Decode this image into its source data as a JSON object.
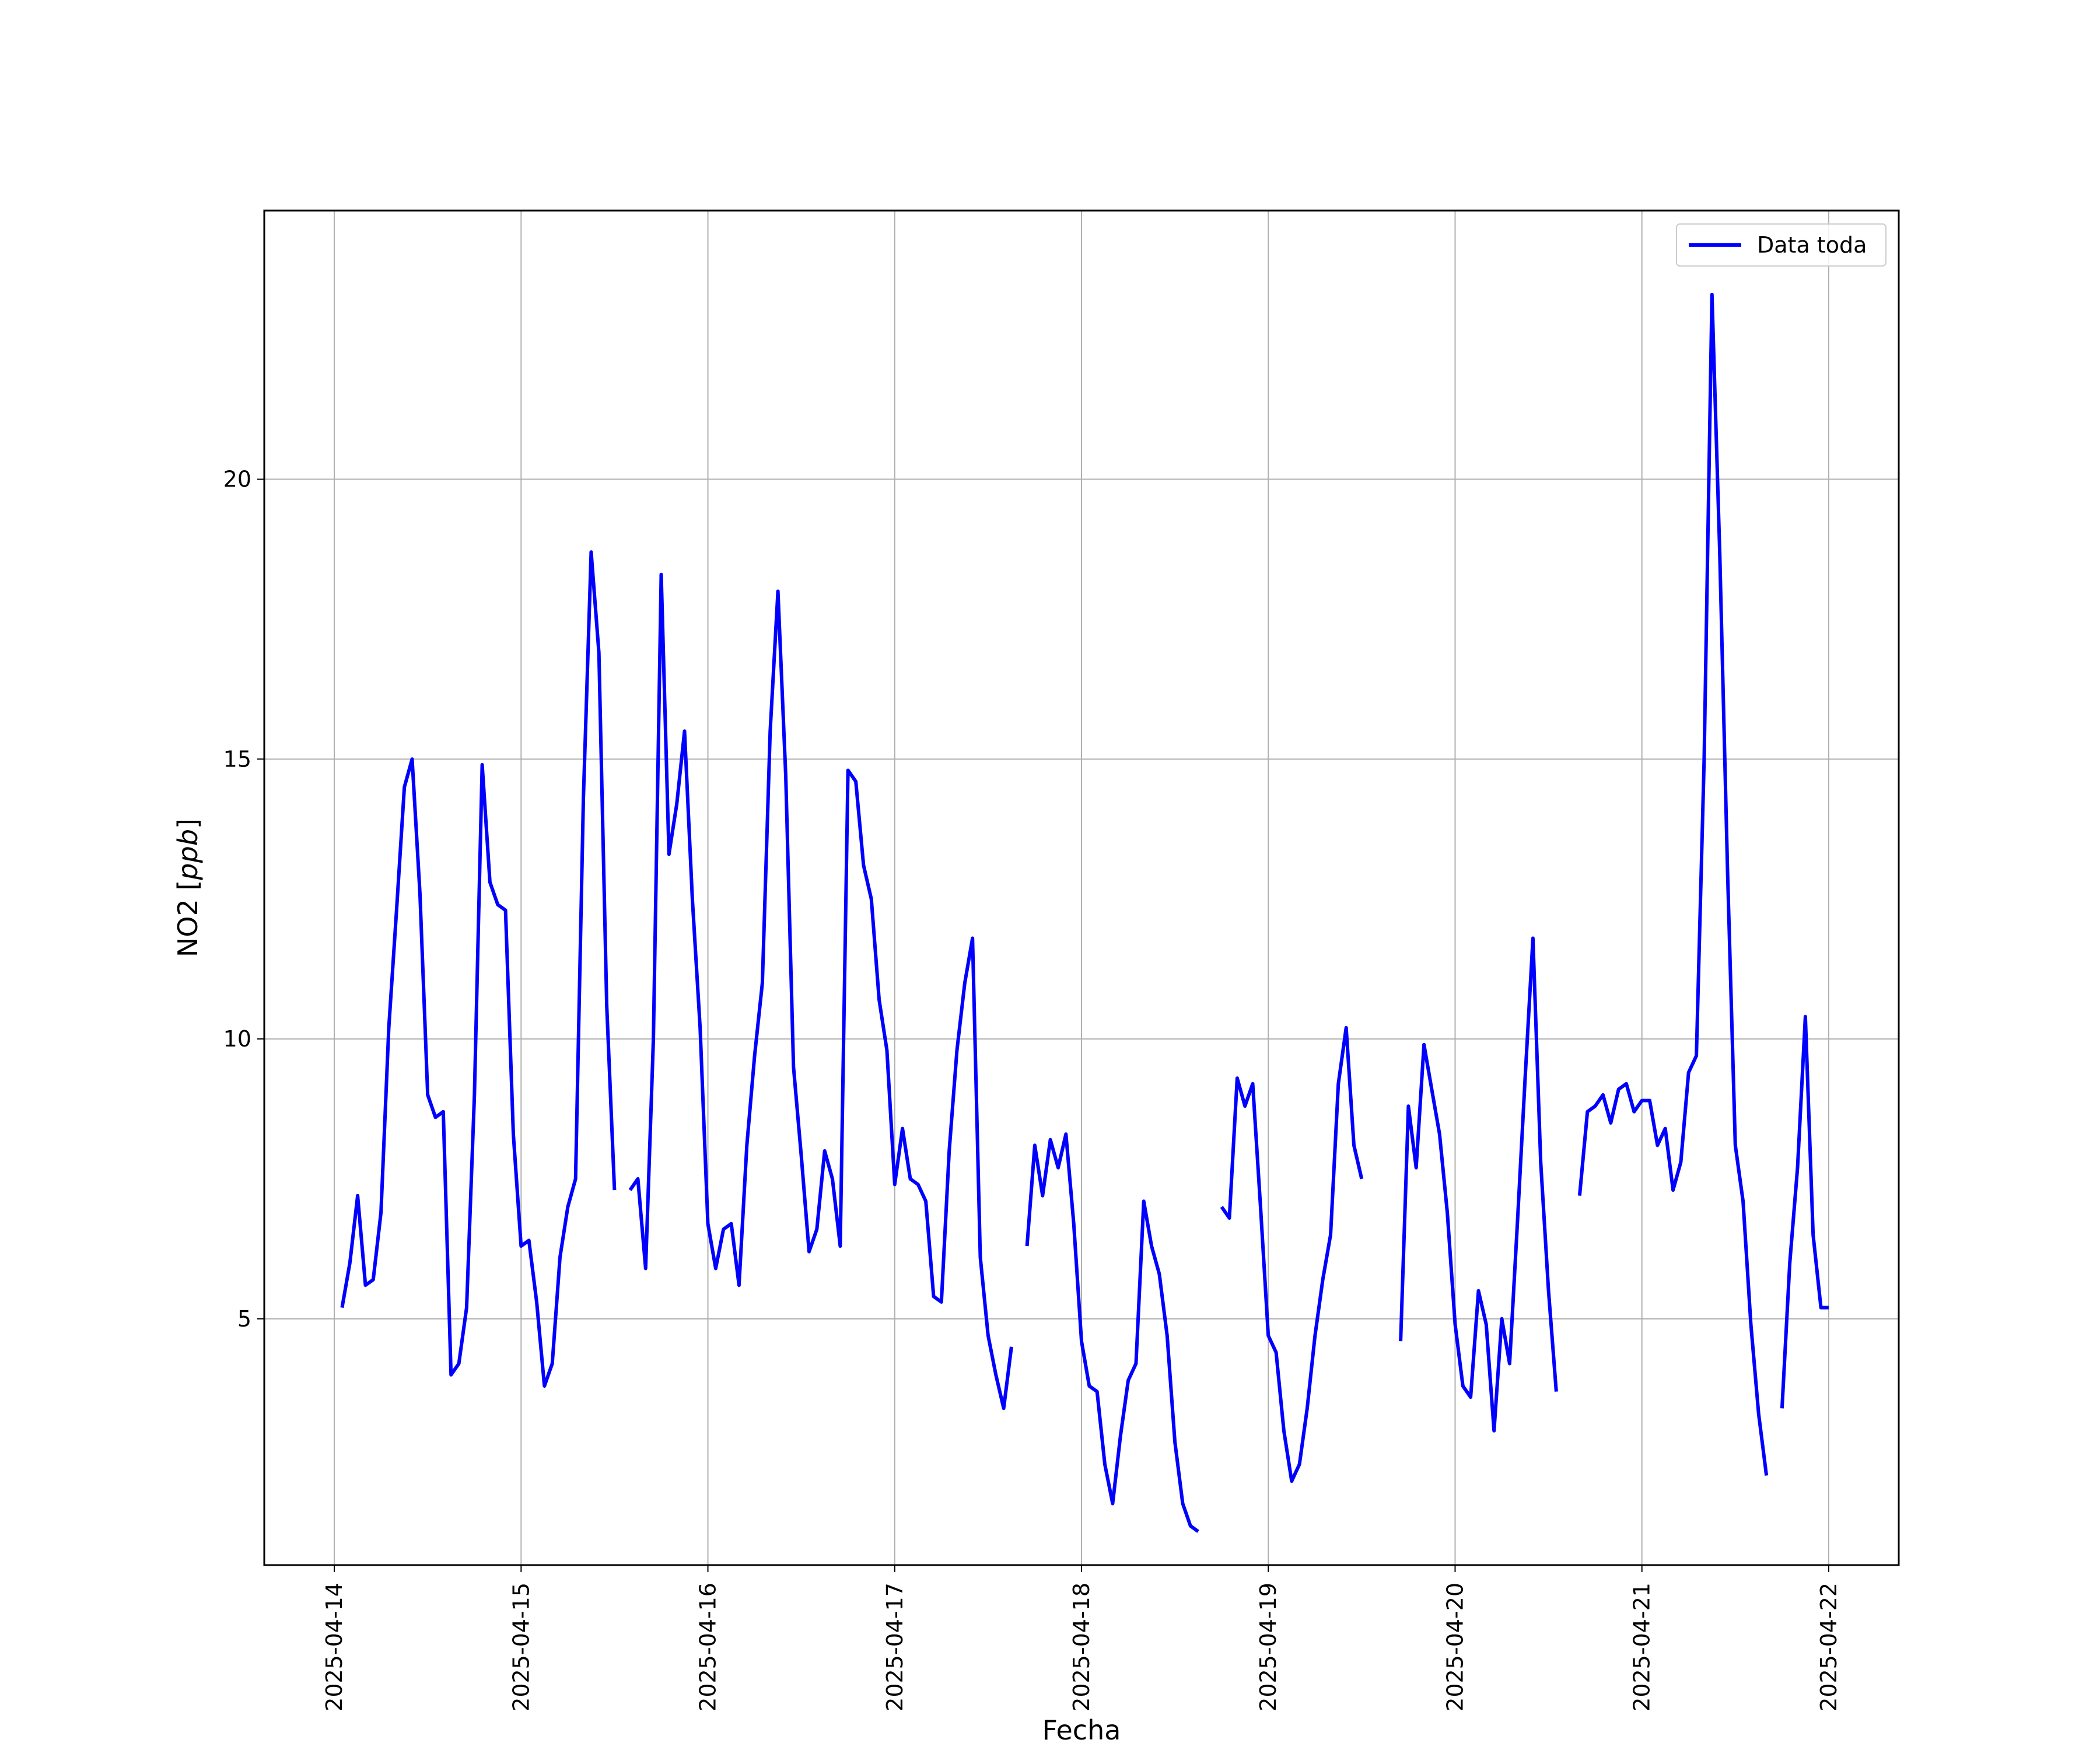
{
  "chart_data": {
    "type": "line",
    "xlabel": "Fecha",
    "ylabel": "NO2 [",
    "ylabel_unit": "ppb",
    "ylabel_close": "]",
    "xlim": [
      "2025-04-13T15:00",
      "2025-04-22T09:00"
    ],
    "ylim": [
      0.6,
      24.8
    ],
    "x_ticks": [
      "2025-04-14",
      "2025-04-15",
      "2025-04-16",
      "2025-04-17",
      "2025-04-18",
      "2025-04-19",
      "2025-04-20",
      "2025-04-21",
      "2025-04-22"
    ],
    "y_ticks": [
      5,
      10,
      15,
      20
    ],
    "grid": true,
    "legend_position": "upper right",
    "series": [
      {
        "name": "Data toda",
        "color": "#0000ff",
        "points": [
          [
            "2025-04-14T01:00",
            5.2
          ],
          [
            "2025-04-14T02:00",
            6.0
          ],
          [
            "2025-04-14T03:00",
            7.2
          ],
          [
            "2025-04-14T04:00",
            5.6
          ],
          [
            "2025-04-14T05:00",
            5.7
          ],
          [
            "2025-04-14T06:00",
            6.9
          ],
          [
            "2025-04-14T07:00",
            10.2
          ],
          [
            "2025-04-14T08:00",
            12.3
          ],
          [
            "2025-04-14T09:00",
            14.5
          ],
          [
            "2025-04-14T10:00",
            15.0
          ],
          [
            "2025-04-14T11:00",
            12.6
          ],
          [
            "2025-04-14T12:00",
            9.0
          ],
          [
            "2025-04-14T13:00",
            8.6
          ],
          [
            "2025-04-14T14:00",
            8.7
          ],
          [
            "2025-04-14T15:00",
            4.0
          ],
          [
            "2025-04-14T16:00",
            4.2
          ],
          [
            "2025-04-14T17:00",
            5.2
          ],
          [
            "2025-04-14T18:00",
            9.0
          ],
          [
            "2025-04-14T19:00",
            14.9
          ],
          [
            "2025-04-14T20:00",
            12.8
          ],
          [
            "2025-04-14T21:00",
            12.4
          ],
          [
            "2025-04-14T22:00",
            12.3
          ],
          [
            "2025-04-14T23:00",
            8.3
          ],
          [
            "2025-04-15T00:00",
            6.3
          ],
          [
            "2025-04-15T01:00",
            6.4
          ],
          [
            "2025-04-15T02:00",
            5.3
          ],
          [
            "2025-04-15T03:00",
            3.8
          ],
          [
            "2025-04-15T04:00",
            4.2
          ],
          [
            "2025-04-15T05:00",
            6.1
          ],
          [
            "2025-04-15T06:00",
            7.0
          ],
          [
            "2025-04-15T07:00",
            7.5
          ],
          [
            "2025-04-15T08:00",
            14.3
          ],
          [
            "2025-04-15T09:00",
            18.7
          ],
          [
            "2025-04-15T10:00",
            16.9
          ],
          [
            "2025-04-15T11:00",
            10.6
          ],
          [
            "2025-04-15T12:00",
            7.3
          ],
          null,
          [
            "2025-04-15T14:00",
            7.3
          ],
          [
            "2025-04-15T15:00",
            7.5
          ],
          [
            "2025-04-15T16:00",
            5.9
          ],
          [
            "2025-04-15T17:00",
            10.0
          ],
          [
            "2025-04-15T18:00",
            18.3
          ],
          [
            "2025-04-15T19:00",
            13.3
          ],
          [
            "2025-04-15T20:00",
            14.2
          ],
          [
            "2025-04-15T21:00",
            15.5
          ],
          [
            "2025-04-15T22:00",
            12.5
          ],
          [
            "2025-04-15T23:00",
            10.2
          ],
          [
            "2025-04-16T00:00",
            6.7
          ],
          [
            "2025-04-16T01:00",
            5.9
          ],
          [
            "2025-04-16T02:00",
            6.6
          ],
          [
            "2025-04-16T03:00",
            6.7
          ],
          [
            "2025-04-16T04:00",
            5.6
          ],
          [
            "2025-04-16T05:00",
            8.1
          ],
          [
            "2025-04-16T06:00",
            9.7
          ],
          [
            "2025-04-16T07:00",
            11.0
          ],
          [
            "2025-04-16T08:00",
            15.5
          ],
          [
            "2025-04-16T09:00",
            18.0
          ],
          [
            "2025-04-16T10:00",
            14.7
          ],
          [
            "2025-04-16T11:00",
            9.5
          ],
          [
            "2025-04-16T12:00",
            7.9
          ],
          [
            "2025-04-16T13:00",
            6.2
          ],
          [
            "2025-04-16T14:00",
            6.6
          ],
          [
            "2025-04-16T15:00",
            8.0
          ],
          [
            "2025-04-16T16:00",
            7.5
          ],
          [
            "2025-04-16T17:00",
            6.3
          ],
          [
            "2025-04-16T18:00",
            14.8
          ],
          [
            "2025-04-16T19:00",
            14.6
          ],
          [
            "2025-04-16T20:00",
            13.1
          ],
          [
            "2025-04-16T21:00",
            12.5
          ],
          [
            "2025-04-16T22:00",
            10.7
          ],
          [
            "2025-04-16T23:00",
            9.8
          ],
          [
            "2025-04-17T00:00",
            7.4
          ],
          [
            "2025-04-17T01:00",
            8.4
          ],
          [
            "2025-04-17T02:00",
            7.5
          ],
          [
            "2025-04-17T03:00",
            7.4
          ],
          [
            "2025-04-17T04:00",
            7.1
          ],
          [
            "2025-04-17T05:00",
            5.4
          ],
          [
            "2025-04-17T06:00",
            5.3
          ],
          [
            "2025-04-17T07:00",
            8.0
          ],
          [
            "2025-04-17T08:00",
            9.8
          ],
          [
            "2025-04-17T09:00",
            11.0
          ],
          [
            "2025-04-17T10:00",
            11.8
          ],
          [
            "2025-04-17T11:00",
            6.1
          ],
          [
            "2025-04-17T12:00",
            4.7
          ],
          [
            "2025-04-17T13:00",
            4.0
          ],
          [
            "2025-04-17T14:00",
            3.4
          ],
          [
            "2025-04-17T15:00",
            4.5
          ],
          null,
          [
            "2025-04-17T17:00",
            6.3
          ],
          [
            "2025-04-17T18:00",
            8.1
          ],
          [
            "2025-04-17T19:00",
            7.2
          ],
          [
            "2025-04-17T20:00",
            8.2
          ],
          [
            "2025-04-17T21:00",
            7.7
          ],
          [
            "2025-04-17T22:00",
            8.3
          ],
          [
            "2025-04-17T23:00",
            6.7
          ],
          [
            "2025-04-18T00:00",
            4.6
          ],
          [
            "2025-04-18T01:00",
            3.8
          ],
          [
            "2025-04-18T02:00",
            3.7
          ],
          [
            "2025-04-18T03:00",
            2.4
          ],
          [
            "2025-04-18T04:00",
            1.7
          ],
          [
            "2025-04-18T05:00",
            2.9
          ],
          [
            "2025-04-18T06:00",
            3.9
          ],
          [
            "2025-04-18T07:00",
            4.2
          ],
          [
            "2025-04-18T08:00",
            7.1
          ],
          [
            "2025-04-18T09:00",
            6.3
          ],
          [
            "2025-04-18T10:00",
            5.8
          ],
          [
            "2025-04-18T11:00",
            4.7
          ],
          [
            "2025-04-18T12:00",
            2.8
          ],
          [
            "2025-04-18T13:00",
            1.7
          ],
          [
            "2025-04-18T14:00",
            1.3
          ],
          [
            "2025-04-18T15:00",
            1.2
          ],
          null,
          [
            "2025-04-18T18:00",
            7.0
          ],
          [
            "2025-04-18T19:00",
            6.8
          ],
          [
            "2025-04-18T20:00",
            9.3
          ],
          [
            "2025-04-18T21:00",
            8.8
          ],
          [
            "2025-04-18T22:00",
            9.2
          ],
          [
            "2025-04-18T23:00",
            7.0
          ],
          [
            "2025-04-19T00:00",
            4.7
          ],
          [
            "2025-04-19T01:00",
            4.4
          ],
          [
            "2025-04-19T02:00",
            3.0
          ],
          [
            "2025-04-19T03:00",
            2.1
          ],
          [
            "2025-04-19T04:00",
            2.4
          ],
          [
            "2025-04-19T05:00",
            3.4
          ],
          [
            "2025-04-19T06:00",
            4.7
          ],
          [
            "2025-04-19T07:00",
            5.7
          ],
          [
            "2025-04-19T08:00",
            6.5
          ],
          [
            "2025-04-19T09:00",
            9.2
          ],
          [
            "2025-04-19T10:00",
            10.2
          ],
          [
            "2025-04-19T11:00",
            8.1
          ],
          [
            "2025-04-19T12:00",
            7.5
          ],
          null,
          [
            "2025-04-19T17:00",
            4.6
          ],
          [
            "2025-04-19T18:00",
            8.8
          ],
          [
            "2025-04-19T19:00",
            7.7
          ],
          [
            "2025-04-19T20:00",
            9.9
          ],
          [
            "2025-04-19T21:00",
            9.1
          ],
          [
            "2025-04-19T22:00",
            8.3
          ],
          [
            "2025-04-19T23:00",
            6.9
          ],
          [
            "2025-04-20T00:00",
            4.9
          ],
          [
            "2025-04-20T01:00",
            3.8
          ],
          [
            "2025-04-20T02:00",
            3.6
          ],
          [
            "2025-04-20T03:00",
            5.5
          ],
          [
            "2025-04-20T04:00",
            4.9
          ],
          [
            "2025-04-20T05:00",
            3.0
          ],
          [
            "2025-04-20T06:00",
            5.0
          ],
          [
            "2025-04-20T07:00",
            4.2
          ],
          [
            "2025-04-20T08:00",
            6.7
          ],
          [
            "2025-04-20T09:00",
            9.3
          ],
          [
            "2025-04-20T10:00",
            11.8
          ],
          [
            "2025-04-20T11:00",
            7.8
          ],
          [
            "2025-04-20T12:00",
            5.5
          ],
          [
            "2025-04-20T13:00",
            3.7
          ],
          null,
          [
            "2025-04-20T16:00",
            7.2
          ],
          [
            "2025-04-20T17:00",
            8.7
          ],
          [
            "2025-04-20T18:00",
            8.8
          ],
          [
            "2025-04-20T19:00",
            9.0
          ],
          [
            "2025-04-20T20:00",
            8.5
          ],
          [
            "2025-04-20T21:00",
            9.1
          ],
          [
            "2025-04-20T22:00",
            9.2
          ],
          [
            "2025-04-20T23:00",
            8.7
          ],
          [
            "2025-04-21T00:00",
            8.9
          ],
          [
            "2025-04-21T01:00",
            8.9
          ],
          [
            "2025-04-21T02:00",
            8.1
          ],
          [
            "2025-04-21T03:00",
            8.4
          ],
          [
            "2025-04-21T04:00",
            7.3
          ],
          [
            "2025-04-21T05:00",
            7.8
          ],
          [
            "2025-04-21T06:00",
            9.4
          ],
          [
            "2025-04-21T07:00",
            9.7
          ],
          [
            "2025-04-21T08:00",
            15.0
          ],
          [
            "2025-04-21T09:00",
            23.3
          ],
          [
            "2025-04-21T10:00",
            18.7
          ],
          [
            "2025-04-21T11:00",
            13.0
          ],
          [
            "2025-04-21T12:00",
            8.1
          ],
          [
            "2025-04-21T13:00",
            7.1
          ],
          [
            "2025-04-21T14:00",
            4.9
          ],
          [
            "2025-04-21T15:00",
            3.3
          ],
          [
            "2025-04-21T16:00",
            2.2
          ],
          null,
          [
            "2025-04-21T18:00",
            3.4
          ],
          [
            "2025-04-21T19:00",
            6.0
          ],
          [
            "2025-04-21T20:00",
            7.7
          ],
          [
            "2025-04-21T21:00",
            10.4
          ],
          [
            "2025-04-21T22:00",
            6.5
          ],
          [
            "2025-04-21T23:00",
            5.2
          ],
          [
            "2025-04-22T00:00",
            5.2
          ]
        ]
      }
    ]
  }
}
